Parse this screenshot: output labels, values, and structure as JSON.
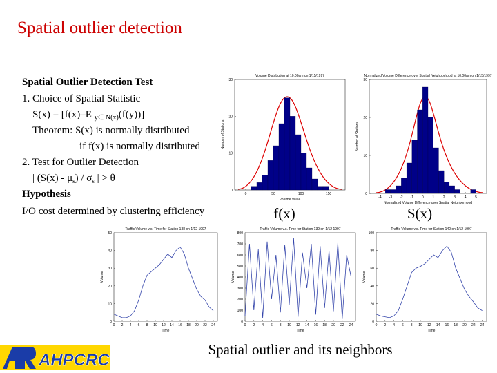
{
  "slide": {
    "title": "Spatial outlier detection",
    "heading": "Spatial Outlier Detection Test",
    "line1": "1. Choice of Spatial Statistic",
    "formula": [
      "S(x) = [f(x)–E ",
      "y∈ N(x)",
      "(f(y))]"
    ],
    "theorem": "Theorem: S(x) is normally distributed",
    "theorem_cont": "if f(x) is normally distributed",
    "line2": "2. Test for Outlier Detection",
    "test": [
      "| (S(x) - μ",
      "s",
      ") / σ",
      "s",
      " | > θ"
    ],
    "hypothesis": "Hypothesis",
    "io_cost": "I/O cost determined by clustering efficiency",
    "label_fx": "f(x)",
    "label_sx": "S(x)",
    "caption": "Spatial outlier and its neighbors",
    "logo": "AHPCRC"
  },
  "chart_data": [
    {
      "type": "histogram",
      "title": "Volume Distribution at 10:00am on 1/15/1997",
      "xlabel": "Volume Value",
      "ylabel": "Number of Stations",
      "bins": [
        0,
        10,
        20,
        30,
        40,
        50,
        60,
        70,
        80,
        90,
        100,
        110,
        120,
        130,
        140,
        150
      ],
      "values": [
        0,
        1,
        2,
        4,
        8,
        12,
        18,
        25,
        20,
        15,
        10,
        6,
        3,
        1,
        1
      ],
      "color": "#000088",
      "xlim": [
        -20,
        180
      ],
      "xticks": [
        0,
        50,
        100,
        150
      ],
      "ylim": [
        0,
        30
      ],
      "yticks": [
        0,
        10,
        20,
        30
      ]
    },
    {
      "type": "histogram",
      "title": "Normalized Volume Difference over Spatial Neighborhood at 10:00am on 1/15/1997",
      "xlabel": "Normalized Volume Difference over Spatial Neighborhood",
      "ylabel": "Number of Stations",
      "bins": [
        -4,
        -3.5,
        -3,
        -2.5,
        -2,
        -1.5,
        -1,
        -0.5,
        0,
        0.5,
        1,
        1.5,
        2,
        2.5,
        3,
        3.5,
        4,
        4.5,
        5
      ],
      "values": [
        0,
        1,
        1,
        2,
        4,
        8,
        14,
        22,
        28,
        20,
        12,
        6,
        3,
        2,
        1,
        0,
        0,
        1
      ],
      "color": "#000088",
      "xlim": [
        -5,
        6
      ],
      "xticks": [
        -4,
        -3,
        -2,
        -1,
        0,
        1,
        2,
        3,
        4,
        5
      ],
      "ylim": [
        0,
        30
      ],
      "yticks": [
        0,
        10,
        20,
        30
      ]
    },
    {
      "type": "line",
      "title": "Traffic Volume v.s. Time for Station 138 on 1/12 1997",
      "xlabel": "Time",
      "ylabel": "Volume",
      "x": [
        0,
        1,
        2,
        3,
        4,
        5,
        6,
        7,
        8,
        9,
        10,
        11,
        12,
        13,
        14,
        15,
        16,
        17,
        18,
        19,
        20,
        21,
        22,
        23,
        24
      ],
      "values": [
        4,
        3,
        2,
        2,
        3,
        6,
        12,
        20,
        26,
        28,
        30,
        32,
        35,
        38,
        36,
        40,
        42,
        38,
        30,
        24,
        18,
        14,
        12,
        8,
        6
      ],
      "color": "#3344aa",
      "xlim": [
        0,
        25
      ],
      "xticks": [
        0,
        2,
        4,
        6,
        8,
        10,
        12,
        14,
        16,
        18,
        20,
        22,
        24
      ],
      "ylim": [
        0,
        50
      ],
      "yticks": [
        0,
        10,
        20,
        30,
        40,
        50
      ]
    },
    {
      "type": "line",
      "title": "Traffic Volume v.s. Time for Station 139 on 1/12 1997",
      "xlabel": "Time",
      "ylabel": "Volume",
      "x": [
        0,
        1,
        2,
        3,
        4,
        5,
        6,
        7,
        8,
        9,
        10,
        11,
        12,
        13,
        14,
        15,
        16,
        17,
        18,
        19,
        20,
        21,
        22,
        23,
        24
      ],
      "values": [
        50,
        700,
        100,
        650,
        30,
        720,
        200,
        600,
        80,
        690,
        150,
        750,
        40,
        620,
        300,
        700,
        60,
        680,
        120,
        640,
        90,
        710,
        20,
        600,
        400
      ],
      "color": "#3344aa",
      "xlim": [
        0,
        25
      ],
      "xticks": [
        0,
        2,
        4,
        6,
        8,
        10,
        12,
        14,
        16,
        18,
        20,
        22,
        24
      ],
      "ylim": [
        0,
        800
      ],
      "yticks": [
        0,
        100,
        200,
        300,
        400,
        500,
        600,
        700,
        800
      ]
    },
    {
      "type": "line",
      "title": "Traffic Volume v.s. Time for Station 140 on 1/12 1997",
      "xlabel": "Time",
      "ylabel": "Volume",
      "x": [
        0,
        1,
        2,
        3,
        4,
        5,
        6,
        7,
        8,
        9,
        10,
        11,
        12,
        13,
        14,
        15,
        16,
        17,
        18,
        19,
        20,
        21,
        22,
        23,
        24
      ],
      "values": [
        8,
        6,
        5,
        4,
        6,
        12,
        25,
        40,
        55,
        60,
        62,
        65,
        70,
        75,
        72,
        80,
        85,
        78,
        60,
        48,
        36,
        28,
        22,
        15,
        12
      ],
      "color": "#3344aa",
      "xlim": [
        0,
        25
      ],
      "xticks": [
        0,
        2,
        4,
        6,
        8,
        10,
        12,
        14,
        16,
        18,
        20,
        22,
        24
      ],
      "ylim": [
        0,
        100
      ],
      "yticks": [
        0,
        20,
        40,
        60,
        80,
        100
      ]
    }
  ]
}
